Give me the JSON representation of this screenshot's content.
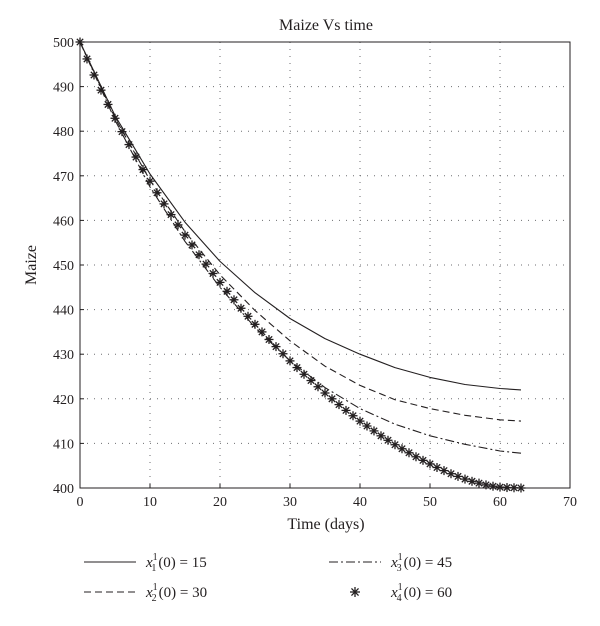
{
  "chart_data": {
    "type": "line",
    "title": "Maize Vs time",
    "xlabel": "Time (days)",
    "ylabel": "Maize",
    "xlim": [
      0,
      70
    ],
    "ylim": [
      400,
      500
    ],
    "xticks": [
      0,
      10,
      20,
      30,
      40,
      50,
      60,
      70
    ],
    "yticks": [
      400,
      410,
      420,
      430,
      440,
      450,
      460,
      470,
      480,
      490,
      500
    ],
    "grid": true,
    "legend_position": "bottom",
    "series": [
      {
        "name": "x_1^1(0) = 15",
        "legend": {
          "var": "x",
          "sub": "1",
          "sup": "1",
          "rest": "(0) = 15"
        },
        "style": "solid",
        "color": "#231f20",
        "x": [
          0,
          5,
          10,
          15,
          20,
          25,
          30,
          35,
          40,
          45,
          50,
          55,
          60,
          63
        ],
        "y": [
          500,
          483.5,
          470.4,
          459.6,
          450.8,
          443.8,
          438.0,
          433.5,
          430.0,
          427.0,
          424.8,
          423.2,
          422.3,
          422.0
        ]
      },
      {
        "name": "x_2^1(0) = 30",
        "legend": {
          "var": "x",
          "sub": "2",
          "sup": "1",
          "rest": "(0) = 30"
        },
        "style": "dashed",
        "color": "#231f20",
        "x": [
          0,
          5,
          10,
          15,
          20,
          25,
          30,
          35,
          40,
          45,
          50,
          55,
          60,
          63
        ],
        "y": [
          500,
          483.0,
          469.0,
          457.5,
          447.8,
          439.8,
          433.0,
          427.3,
          423.0,
          419.8,
          417.8,
          416.3,
          415.3,
          415.0
        ]
      },
      {
        "name": "x_3^1(0) = 45",
        "legend": {
          "var": "x",
          "sub": "3",
          "sup": "1",
          "rest": "(0) = 45"
        },
        "style": "dashdot",
        "color": "#231f20",
        "x": [
          0,
          5,
          10,
          15,
          20,
          25,
          30,
          35,
          40,
          45,
          50,
          55,
          60,
          63
        ],
        "y": [
          500,
          482.5,
          467.5,
          455.3,
          445.0,
          436.0,
          428.5,
          422.5,
          417.8,
          414.3,
          411.7,
          409.8,
          408.3,
          407.8
        ]
      },
      {
        "name": "x_4^1(0) = 60",
        "legend": {
          "var": "x",
          "sub": "4",
          "sup": "1",
          "rest": "(0) = 60"
        },
        "style": "asterisk",
        "color": "#231f20",
        "x": [
          0,
          1,
          2,
          3,
          4,
          5,
          6,
          7,
          8,
          9,
          10,
          11,
          12,
          13,
          14,
          15,
          16,
          17,
          18,
          19,
          20,
          21,
          22,
          23,
          24,
          25,
          26,
          27,
          28,
          29,
          30,
          31,
          32,
          33,
          34,
          35,
          36,
          37,
          38,
          39,
          40,
          41,
          42,
          43,
          44,
          45,
          46,
          47,
          48,
          49,
          50,
          51,
          52,
          53,
          54,
          55,
          56,
          57,
          58,
          59,
          60,
          61,
          62,
          63
        ],
        "y": [
          500,
          496.2,
          492.6,
          489.2,
          486.0,
          482.9,
          479.9,
          477.0,
          474.2,
          471.4,
          468.8,
          466.2,
          463.7,
          461.3,
          459.0,
          456.7,
          454.5,
          452.3,
          450.2,
          448.1,
          446.1,
          444.1,
          442.2,
          440.3,
          438.5,
          436.7,
          435.0,
          433.3,
          431.7,
          430.1,
          428.5,
          427.0,
          425.5,
          424.1,
          422.7,
          421.3,
          420.0,
          418.7,
          417.4,
          416.2,
          415.0,
          413.9,
          412.8,
          411.7,
          410.7,
          409.7,
          408.8,
          407.9,
          407.0,
          406.2,
          405.4,
          404.6,
          403.9,
          403.2,
          402.6,
          402.0,
          401.5,
          401.1,
          400.7,
          400.4,
          400.2,
          400.1,
          400.05,
          400.0
        ]
      }
    ]
  }
}
